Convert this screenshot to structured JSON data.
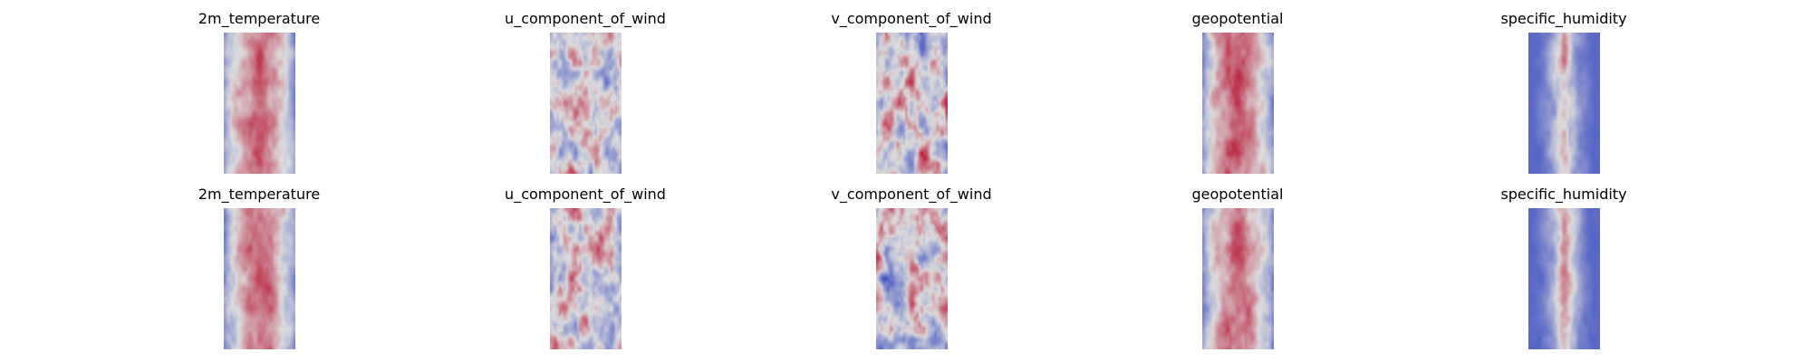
{
  "chart_data": {
    "type": "heatmap",
    "colormap": "coolwarm",
    "colormap_colors": {
      "low": "#3b4cc0",
      "mid": "#dddddd",
      "high": "#b40426"
    },
    "axes": "off",
    "rows": [
      {
        "panels": [
          {
            "title": "2m_temperature",
            "pattern": "temperature",
            "seed": 11
          },
          {
            "title": "u_component_of_wind",
            "pattern": "wind_u",
            "seed": 23
          },
          {
            "title": "v_component_of_wind",
            "pattern": "wind_v",
            "seed": 37
          },
          {
            "title": "geopotential",
            "pattern": "geopotential",
            "seed": 41
          },
          {
            "title": "specific_humidity",
            "pattern": "humidity",
            "seed": 53
          }
        ]
      },
      {
        "panels": [
          {
            "title": "2m_temperature",
            "pattern": "temperature",
            "seed": 67
          },
          {
            "title": "u_component_of_wind",
            "pattern": "wind_u",
            "seed": 79
          },
          {
            "title": "v_component_of_wind",
            "pattern": "wind_v",
            "seed": 83
          },
          {
            "title": "geopotential",
            "pattern": "geopotential",
            "seed": 97
          },
          {
            "title": "specific_humidity",
            "pattern": "humidity",
            "seed": 101
          }
        ]
      }
    ]
  }
}
